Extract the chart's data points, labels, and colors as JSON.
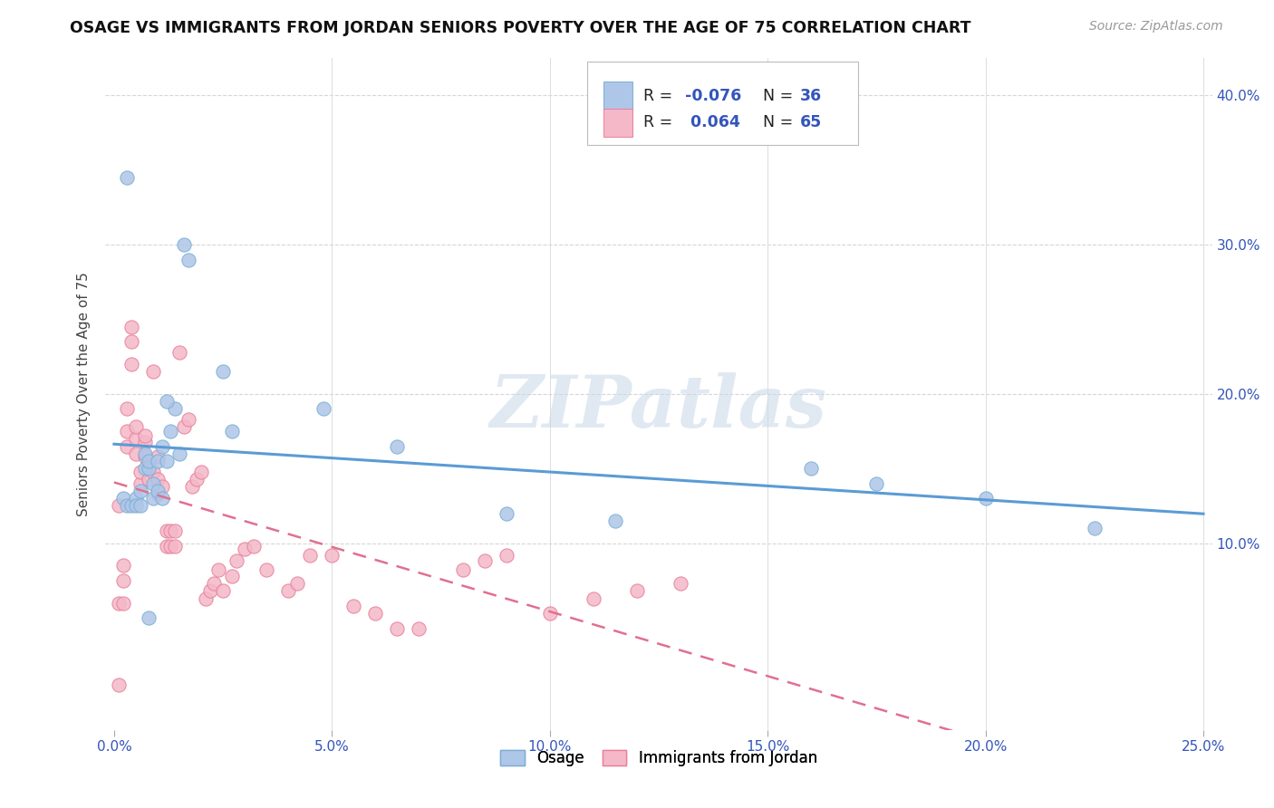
{
  "title": "OSAGE VS IMMIGRANTS FROM JORDAN SENIORS POVERTY OVER THE AGE OF 75 CORRELATION CHART",
  "source": "Source: ZipAtlas.com",
  "ylabel_label": "Seniors Poverty Over the Age of 75",
  "legend_labels": [
    "Osage",
    "Immigrants from Jordan"
  ],
  "legend_r_osage": "-0.076",
  "legend_n_osage": "36",
  "legend_r_jordan": "0.064",
  "legend_n_jordan": "65",
  "color_osage": "#aec6e8",
  "color_jordan": "#f4b8c8",
  "color_osage_edge": "#7bafd4",
  "color_jordan_edge": "#e8809a",
  "color_osage_line": "#5b9bd5",
  "color_jordan_line": "#e07090",
  "color_blue_text": "#3355bb",
  "watermark_text": "ZIPatlas",
  "xlim": [
    -0.002,
    0.252
  ],
  "ylim": [
    -0.025,
    0.425
  ],
  "xtick_vals": [
    0.0,
    0.05,
    0.1,
    0.15,
    0.2,
    0.25
  ],
  "ytick_vals": [
    0.1,
    0.2,
    0.3,
    0.4
  ],
  "osage_x": [
    0.002,
    0.003,
    0.004,
    0.005,
    0.005,
    0.006,
    0.006,
    0.007,
    0.007,
    0.008,
    0.008,
    0.009,
    0.009,
    0.01,
    0.01,
    0.011,
    0.011,
    0.012,
    0.013,
    0.014,
    0.015,
    0.016,
    0.017,
    0.025,
    0.027,
    0.048,
    0.065,
    0.09,
    0.115,
    0.16,
    0.175,
    0.2,
    0.225,
    0.003,
    0.008,
    0.012
  ],
  "osage_y": [
    0.13,
    0.125,
    0.125,
    0.13,
    0.125,
    0.135,
    0.125,
    0.16,
    0.15,
    0.15,
    0.155,
    0.14,
    0.13,
    0.135,
    0.155,
    0.165,
    0.13,
    0.155,
    0.175,
    0.19,
    0.16,
    0.3,
    0.29,
    0.215,
    0.175,
    0.19,
    0.165,
    0.12,
    0.115,
    0.15,
    0.14,
    0.13,
    0.11,
    0.345,
    0.05,
    0.195
  ],
  "jordan_x": [
    0.001,
    0.001,
    0.002,
    0.002,
    0.002,
    0.003,
    0.003,
    0.003,
    0.004,
    0.004,
    0.004,
    0.005,
    0.005,
    0.005,
    0.006,
    0.006,
    0.007,
    0.007,
    0.007,
    0.008,
    0.008,
    0.009,
    0.009,
    0.01,
    0.01,
    0.01,
    0.011,
    0.012,
    0.012,
    0.013,
    0.013,
    0.014,
    0.014,
    0.015,
    0.016,
    0.017,
    0.018,
    0.019,
    0.02,
    0.021,
    0.022,
    0.023,
    0.024,
    0.025,
    0.027,
    0.028,
    0.03,
    0.032,
    0.035,
    0.04,
    0.042,
    0.045,
    0.05,
    0.055,
    0.06,
    0.065,
    0.07,
    0.08,
    0.085,
    0.09,
    0.1,
    0.11,
    0.12,
    0.13,
    0.001
  ],
  "jordan_y": [
    0.125,
    0.06,
    0.075,
    0.085,
    0.06,
    0.165,
    0.175,
    0.19,
    0.22,
    0.235,
    0.245,
    0.16,
    0.17,
    0.178,
    0.14,
    0.148,
    0.158,
    0.168,
    0.172,
    0.143,
    0.153,
    0.148,
    0.215,
    0.133,
    0.143,
    0.158,
    0.138,
    0.098,
    0.108,
    0.098,
    0.108,
    0.098,
    0.108,
    0.228,
    0.178,
    0.183,
    0.138,
    0.143,
    0.148,
    0.063,
    0.068,
    0.073,
    0.082,
    0.068,
    0.078,
    0.088,
    0.096,
    0.098,
    0.082,
    0.068,
    0.073,
    0.092,
    0.092,
    0.058,
    0.053,
    0.043,
    0.043,
    0.082,
    0.088,
    0.092,
    0.053,
    0.063,
    0.068,
    0.073,
    0.005
  ]
}
